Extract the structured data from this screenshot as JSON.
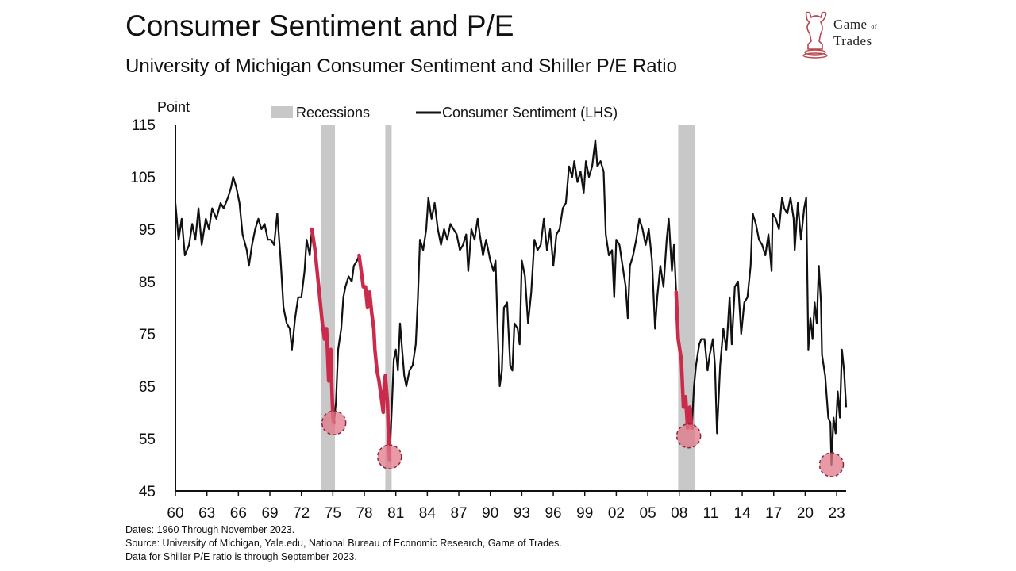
{
  "header": {
    "title": "Consumer Sentiment and P/E",
    "subtitle": "University of Michigan Consumer Sentiment and Shiller P/E Ratio"
  },
  "logo": {
    "line1": "Game",
    "line1_small": "of",
    "line2": "Trades",
    "icon": "bull-chess-knight-icon"
  },
  "footnotes": [
    "Dates: 1960 Through November 2023.",
    "Source: University of Michigan, Yale.edu, National Bureau of Economic Research, Game of Trades.",
    "Data for Shiller P/E ratio is through September 2023."
  ],
  "colors": {
    "line": "#111111",
    "highlight": "#cc2a4a",
    "recession": "#c8c8c8",
    "marker": "#e07888"
  },
  "chart_data": {
    "type": "line",
    "ylabel": "Point",
    "ylim": [
      45,
      115
    ],
    "yticks": [
      45,
      55,
      65,
      75,
      85,
      95,
      105,
      115
    ],
    "xlim": [
      1960,
      2023.9
    ],
    "xticks": [
      {
        "x": 1960,
        "label": "60"
      },
      {
        "x": 1963,
        "label": "63"
      },
      {
        "x": 1966,
        "label": "66"
      },
      {
        "x": 1969,
        "label": "69"
      },
      {
        "x": 1972,
        "label": "72"
      },
      {
        "x": 1975,
        "label": "75"
      },
      {
        "x": 1978,
        "label": "78"
      },
      {
        "x": 1981,
        "label": "81"
      },
      {
        "x": 1984,
        "label": "84"
      },
      {
        "x": 1987,
        "label": "87"
      },
      {
        "x": 1990,
        "label": "90"
      },
      {
        "x": 1993,
        "label": "93"
      },
      {
        "x": 1996,
        "label": "96"
      },
      {
        "x": 1999,
        "label": "99"
      },
      {
        "x": 2002,
        "label": "02"
      },
      {
        "x": 2005,
        "label": "05"
      },
      {
        "x": 2008,
        "label": "08"
      },
      {
        "x": 2011,
        "label": "11"
      },
      {
        "x": 2014,
        "label": "14"
      },
      {
        "x": 2017,
        "label": "17"
      },
      {
        "x": 2020,
        "label": "20"
      },
      {
        "x": 2023,
        "label": "23"
      }
    ],
    "legend": [
      {
        "type": "recession",
        "label": "Recessions"
      },
      {
        "type": "line",
        "label": "Consumer Sentiment (LHS)"
      }
    ],
    "recessions": [
      [
        1973.9,
        1975.2
      ],
      [
        1980.0,
        1980.6
      ],
      [
        2007.9,
        2009.5
      ]
    ],
    "series": [
      {
        "name": "Consumer Sentiment (LHS)",
        "points": [
          [
            1960.0,
            100
          ],
          [
            1960.3,
            93
          ],
          [
            1960.6,
            97
          ],
          [
            1960.9,
            90
          ],
          [
            1961.3,
            92
          ],
          [
            1961.6,
            96
          ],
          [
            1961.9,
            93
          ],
          [
            1962.2,
            99
          ],
          [
            1962.5,
            92
          ],
          [
            1962.9,
            97
          ],
          [
            1963.2,
            95
          ],
          [
            1963.5,
            99
          ],
          [
            1963.9,
            97
          ],
          [
            1964.3,
            100
          ],
          [
            1964.6,
            99
          ],
          [
            1965.0,
            101
          ],
          [
            1965.3,
            103
          ],
          [
            1965.5,
            105
          ],
          [
            1965.8,
            103
          ],
          [
            1966.1,
            100
          ],
          [
            1966.4,
            94
          ],
          [
            1966.8,
            91
          ],
          [
            1967.0,
            88
          ],
          [
            1967.3,
            92
          ],
          [
            1967.6,
            95
          ],
          [
            1967.9,
            97
          ],
          [
            1968.2,
            95
          ],
          [
            1968.5,
            96
          ],
          [
            1968.8,
            93
          ],
          [
            1969.1,
            93
          ],
          [
            1969.4,
            92
          ],
          [
            1969.7,
            98
          ],
          [
            1970.0,
            90
          ],
          [
            1970.3,
            80
          ],
          [
            1970.6,
            77
          ],
          [
            1970.9,
            76
          ],
          [
            1971.1,
            72
          ],
          [
            1971.4,
            78
          ],
          [
            1971.7,
            82
          ],
          [
            1972.0,
            82
          ],
          [
            1972.3,
            87
          ],
          [
            1972.5,
            93
          ],
          [
            1972.8,
            90
          ],
          [
            1973.0,
            95
          ],
          [
            1973.3,
            91
          ],
          [
            1973.7,
            83
          ],
          [
            1974.0,
            77
          ],
          [
            1974.2,
            74
          ],
          [
            1974.4,
            76
          ],
          [
            1974.6,
            66
          ],
          [
            1974.8,
            72
          ],
          [
            1974.9,
            65
          ],
          [
            1975.0,
            59
          ],
          [
            1975.1,
            58
          ],
          [
            1975.3,
            62
          ],
          [
            1975.5,
            72
          ],
          [
            1975.8,
            76
          ],
          [
            1976.0,
            82
          ],
          [
            1976.2,
            84
          ],
          [
            1976.5,
            86
          ],
          [
            1976.8,
            85
          ],
          [
            1977.0,
            88
          ],
          [
            1977.3,
            89
          ],
          [
            1977.5,
            90
          ],
          [
            1977.7,
            87
          ],
          [
            1977.9,
            84
          ],
          [
            1978.1,
            84
          ],
          [
            1978.3,
            80
          ],
          [
            1978.5,
            83
          ],
          [
            1978.7,
            79
          ],
          [
            1978.9,
            76
          ],
          [
            1979.0,
            72
          ],
          [
            1979.2,
            68
          ],
          [
            1979.4,
            66
          ],
          [
            1979.6,
            63
          ],
          [
            1979.8,
            60
          ],
          [
            1979.9,
            66
          ],
          [
            1980.0,
            67
          ],
          [
            1980.2,
            62
          ],
          [
            1980.3,
            56
          ],
          [
            1980.4,
            51
          ],
          [
            1980.6,
            60
          ],
          [
            1980.8,
            70
          ],
          [
            1981.0,
            72
          ],
          [
            1981.2,
            68
          ],
          [
            1981.4,
            77
          ],
          [
            1981.6,
            72
          ],
          [
            1981.8,
            67
          ],
          [
            1982.0,
            65
          ],
          [
            1982.3,
            68
          ],
          [
            1982.6,
            69
          ],
          [
            1982.9,
            73
          ],
          [
            1983.1,
            82
          ],
          [
            1983.3,
            93
          ],
          [
            1983.6,
            91
          ],
          [
            1983.9,
            95
          ],
          [
            1984.1,
            101
          ],
          [
            1984.4,
            97
          ],
          [
            1984.7,
            100
          ],
          [
            1985.0,
            95
          ],
          [
            1985.3,
            92
          ],
          [
            1985.6,
            95
          ],
          [
            1985.9,
            93
          ],
          [
            1986.2,
            96
          ],
          [
            1986.5,
            95
          ],
          [
            1986.8,
            94
          ],
          [
            1987.1,
            91
          ],
          [
            1987.4,
            92
          ],
          [
            1987.7,
            94
          ],
          [
            1987.9,
            87
          ],
          [
            1988.2,
            95
          ],
          [
            1988.5,
            93
          ],
          [
            1988.8,
            97
          ],
          [
            1989.0,
            94
          ],
          [
            1989.3,
            90
          ],
          [
            1989.6,
            93
          ],
          [
            1989.9,
            90
          ],
          [
            1990.0,
            89
          ],
          [
            1990.3,
            87
          ],
          [
            1990.5,
            89
          ],
          [
            1990.7,
            76
          ],
          [
            1990.9,
            65
          ],
          [
            1991.1,
            68
          ],
          [
            1991.3,
            80
          ],
          [
            1991.6,
            81
          ],
          [
            1991.9,
            69
          ],
          [
            1992.1,
            68
          ],
          [
            1992.3,
            77
          ],
          [
            1992.6,
            76
          ],
          [
            1992.8,
            73
          ],
          [
            1993.0,
            89
          ],
          [
            1993.3,
            86
          ],
          [
            1993.6,
            77
          ],
          [
            1993.9,
            83
          ],
          [
            1994.2,
            93
          ],
          [
            1994.5,
            91
          ],
          [
            1994.8,
            92
          ],
          [
            1995.1,
            97
          ],
          [
            1995.4,
            91
          ],
          [
            1995.7,
            95
          ],
          [
            1996.0,
            88
          ],
          [
            1996.3,
            94
          ],
          [
            1996.6,
            95
          ],
          [
            1996.9,
            99
          ],
          [
            1997.2,
            100
          ],
          [
            1997.5,
            107
          ],
          [
            1997.8,
            105
          ],
          [
            1998.0,
            108
          ],
          [
            1998.3,
            104
          ],
          [
            1998.6,
            106
          ],
          [
            1998.9,
            102
          ],
          [
            1999.1,
            108
          ],
          [
            1999.4,
            105
          ],
          [
            1999.7,
            107
          ],
          [
            2000.0,
            112
          ],
          [
            2000.2,
            107
          ],
          [
            2000.5,
            108
          ],
          [
            2000.8,
            106
          ],
          [
            2001.0,
            94
          ],
          [
            2001.3,
            90
          ],
          [
            2001.6,
            91
          ],
          [
            2001.8,
            82
          ],
          [
            2002.0,
            93
          ],
          [
            2002.3,
            92
          ],
          [
            2002.6,
            88
          ],
          [
            2002.9,
            84
          ],
          [
            2003.1,
            78
          ],
          [
            2003.3,
            88
          ],
          [
            2003.6,
            90
          ],
          [
            2003.9,
            93
          ],
          [
            2004.2,
            97
          ],
          [
            2004.5,
            95
          ],
          [
            2004.8,
            92
          ],
          [
            2005.1,
            95
          ],
          [
            2005.4,
            89
          ],
          [
            2005.7,
            76
          ],
          [
            2005.9,
            82
          ],
          [
            2006.2,
            88
          ],
          [
            2006.5,
            84
          ],
          [
            2006.8,
            93
          ],
          [
            2007.0,
            97
          ],
          [
            2007.3,
            87
          ],
          [
            2007.5,
            92
          ],
          [
            2007.7,
            83
          ],
          [
            2007.9,
            74
          ],
          [
            2008.2,
            70
          ],
          [
            2008.4,
            61
          ],
          [
            2008.6,
            63
          ],
          [
            2008.8,
            57
          ],
          [
            2009.0,
            61
          ],
          [
            2009.2,
            57
          ],
          [
            2009.4,
            65
          ],
          [
            2009.6,
            69
          ],
          [
            2009.9,
            73
          ],
          [
            2010.1,
            74
          ],
          [
            2010.4,
            74
          ],
          [
            2010.7,
            68
          ],
          [
            2010.9,
            71
          ],
          [
            2011.2,
            74
          ],
          [
            2011.4,
            69
          ],
          [
            2011.6,
            56
          ],
          [
            2011.9,
            69
          ],
          [
            2012.2,
            76
          ],
          [
            2012.5,
            72
          ],
          [
            2012.8,
            82
          ],
          [
            2013.0,
            73
          ],
          [
            2013.3,
            84
          ],
          [
            2013.6,
            85
          ],
          [
            2013.9,
            75
          ],
          [
            2014.2,
            81
          ],
          [
            2014.5,
            82
          ],
          [
            2014.8,
            88
          ],
          [
            2015.0,
            98
          ],
          [
            2015.3,
            96
          ],
          [
            2015.6,
            93
          ],
          [
            2015.9,
            92
          ],
          [
            2016.2,
            90
          ],
          [
            2016.5,
            94
          ],
          [
            2016.8,
            87
          ],
          [
            2016.9,
            98
          ],
          [
            2017.2,
            97
          ],
          [
            2017.5,
            95
          ],
          [
            2017.8,
            101
          ],
          [
            2018.0,
            99
          ],
          [
            2018.3,
            98
          ],
          [
            2018.6,
            101
          ],
          [
            2018.9,
            97
          ],
          [
            2019.0,
            91
          ],
          [
            2019.3,
            100
          ],
          [
            2019.6,
            93
          ],
          [
            2019.9,
            99
          ],
          [
            2020.1,
            101
          ],
          [
            2020.3,
            72
          ],
          [
            2020.5,
            78
          ],
          [
            2020.7,
            74
          ],
          [
            2020.9,
            81
          ],
          [
            2021.1,
            77
          ],
          [
            2021.3,
            88
          ],
          [
            2021.5,
            81
          ],
          [
            2021.6,
            71
          ],
          [
            2021.9,
            67
          ],
          [
            2022.2,
            59
          ],
          [
            2022.4,
            58
          ],
          [
            2022.5,
            50
          ],
          [
            2022.7,
            59
          ],
          [
            2022.9,
            56
          ],
          [
            2023.1,
            64
          ],
          [
            2023.3,
            59
          ],
          [
            2023.5,
            72
          ],
          [
            2023.7,
            68
          ],
          [
            2023.9,
            61
          ]
        ],
        "highlights": [
          [
            1973.0,
            1975.1
          ],
          [
            1977.5,
            1980.4
          ],
          [
            2007.7,
            2009.2
          ]
        ]
      }
    ],
    "markers": [
      [
        1975.1,
        58
      ],
      [
        1980.4,
        51.5
      ],
      [
        2008.9,
        55.5
      ],
      [
        2022.5,
        50
      ]
    ]
  }
}
